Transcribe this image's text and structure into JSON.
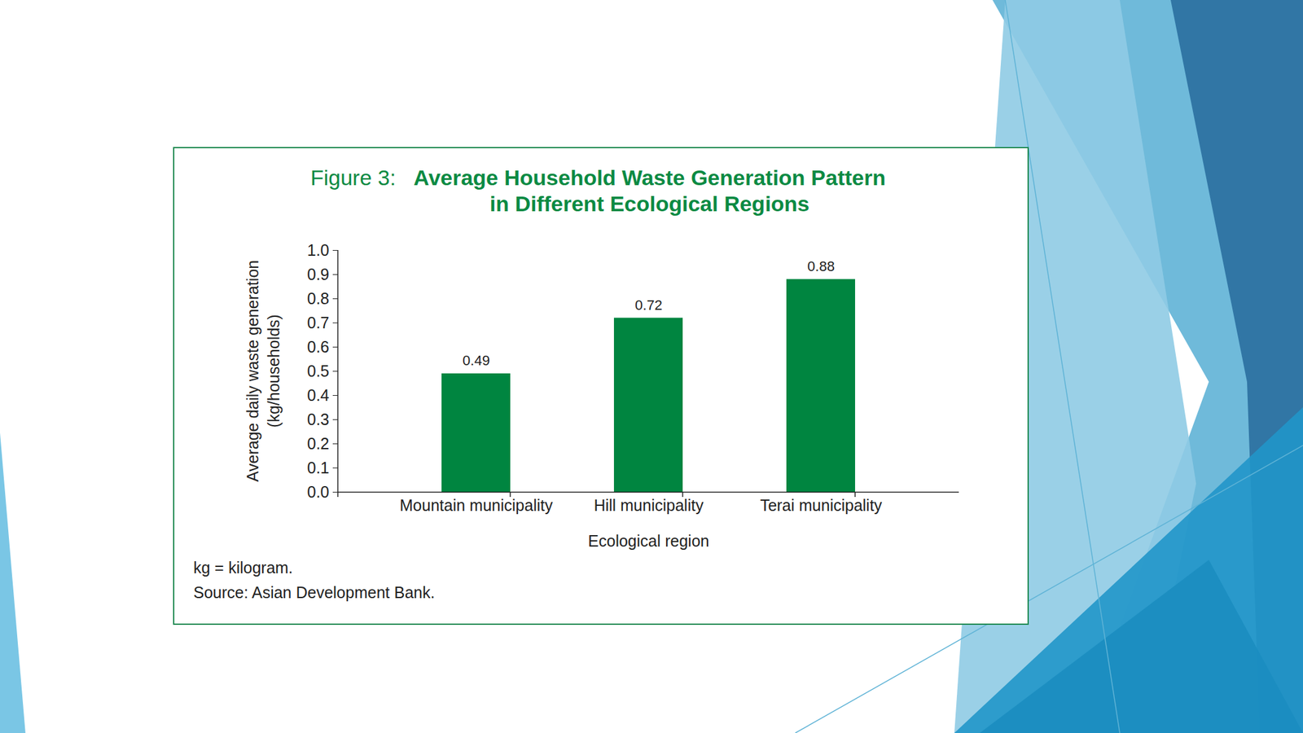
{
  "chart_data": {
    "type": "bar",
    "title": "Figure 3: Average Household Waste Generation Pattern in Different Ecological Regions",
    "x_label": "Ecological region",
    "y_label": "Average daily waste generation (kg/households)",
    "categories": [
      "Mountain municipality",
      "Hill municipality",
      "Terai municipality"
    ],
    "values": [
      0.49,
      0.72,
      0.88
    ],
    "color": "#008540",
    "ylim": [
      0,
      1.0
    ],
    "yticks": [
      {
        "value": 0,
        "label": "0.0"
      },
      0.1,
      0.2,
      0.3,
      0.4,
      0.5,
      0.6,
      0.7,
      0.8,
      0.9,
      {
        "value": 1.0,
        "label": "1.0"
      }
    ],
    "grid": false,
    "data_labels": true,
    "notes": [
      "kg = kilogram.",
      "Source: Asian Development Bank."
    ]
  }
}
